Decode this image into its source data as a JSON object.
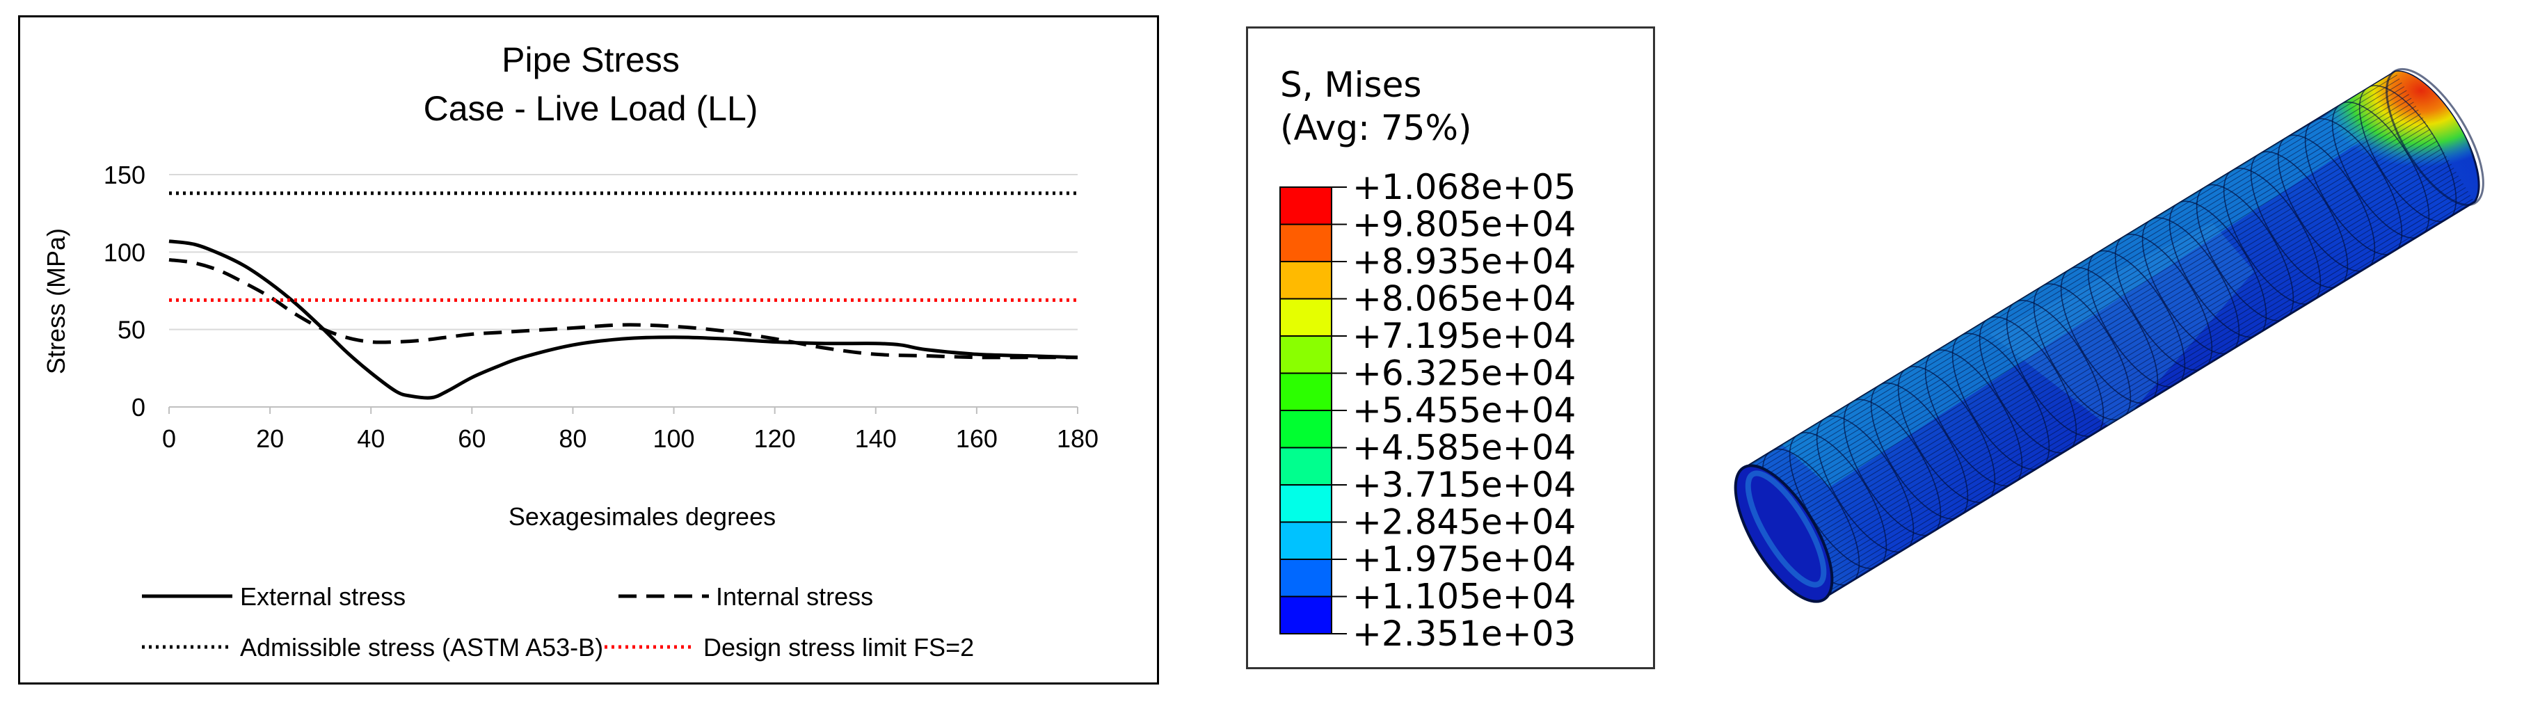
{
  "chart_data": {
    "type": "line",
    "title": "Pipe Stress",
    "subtitle": "Case - Live Load (LL)",
    "xlabel": "Sexagesimales degrees",
    "ylabel": "Stress (MPa)",
    "xlim": [
      0,
      180
    ],
    "ylim": [
      0,
      150
    ],
    "xticks": [
      0,
      20,
      40,
      60,
      80,
      100,
      120,
      140,
      160,
      180
    ],
    "yticks": [
      0,
      50,
      100,
      150
    ],
    "grid": true,
    "legend_position": "bottom",
    "series": [
      {
        "name": "External stress",
        "style": "solid",
        "color": "#000000",
        "x": [
          0,
          5,
          10,
          15,
          20,
          25,
          30,
          35,
          40,
          45,
          48,
          52,
          55,
          60,
          65,
          70,
          80,
          90,
          100,
          110,
          120,
          130,
          140,
          145,
          150,
          160,
          170,
          180
        ],
        "y": [
          107,
          105,
          99,
          91,
          80,
          67,
          52,
          36,
          22,
          10,
          7,
          6,
          10,
          19,
          26,
          32,
          40,
          44,
          45,
          44,
          42,
          41,
          41,
          40,
          37,
          34,
          33,
          32
        ]
      },
      {
        "name": "Internal stress",
        "style": "dashed",
        "color": "#000000",
        "x": [
          0,
          5,
          10,
          15,
          20,
          25,
          30,
          35,
          40,
          45,
          50,
          55,
          60,
          65,
          70,
          80,
          90,
          100,
          110,
          120,
          130,
          140,
          150,
          160,
          170,
          180
        ],
        "y": [
          95,
          93,
          88,
          80,
          71,
          60,
          51,
          45,
          42,
          42,
          43,
          45,
          47,
          48,
          49,
          51,
          53,
          52,
          49,
          44,
          38,
          34,
          33,
          32,
          32,
          32
        ]
      },
      {
        "name": "Admissible stress (ASTM A53-B)",
        "style": "dotted",
        "color": "#000000",
        "x": [
          0,
          180
        ],
        "y": [
          138,
          138
        ]
      },
      {
        "name": "Design stress limit FS=2",
        "style": "dotted",
        "color": "#ff0000",
        "x": [
          0,
          180
        ],
        "y": [
          69,
          69
        ]
      }
    ]
  },
  "contour_legend": {
    "title_line1": "S, Mises",
    "title_line2": "(Avg: 75%)",
    "values": [
      "+1.068e+05",
      "+9.805e+04",
      "+8.935e+04",
      "+8.065e+04",
      "+7.195e+04",
      "+6.325e+04",
      "+5.455e+04",
      "+4.585e+04",
      "+3.715e+04",
      "+2.845e+04",
      "+1.975e+04",
      "+1.105e+04",
      "+2.351e+03"
    ],
    "colors": [
      "#ff0000",
      "#ff5d00",
      "#ffba00",
      "#e5ff00",
      "#8aff00",
      "#2cff00",
      "#00ff30",
      "#00ff8e",
      "#00ffe8",
      "#00c2ff",
      "#0068ff",
      "#000aff"
    ]
  },
  "pipe_render": {
    "colors": {
      "shell_dark": "#0a1fa8",
      "shell_mid": "#0b3ccf",
      "shell_light": "#1466e0",
      "band_cyan": "#18a6d8",
      "hot_green": "#3ad63a",
      "hot_yellow": "#e8e000",
      "hot_red": "#e62a0a",
      "mesh": "#001040"
    }
  }
}
